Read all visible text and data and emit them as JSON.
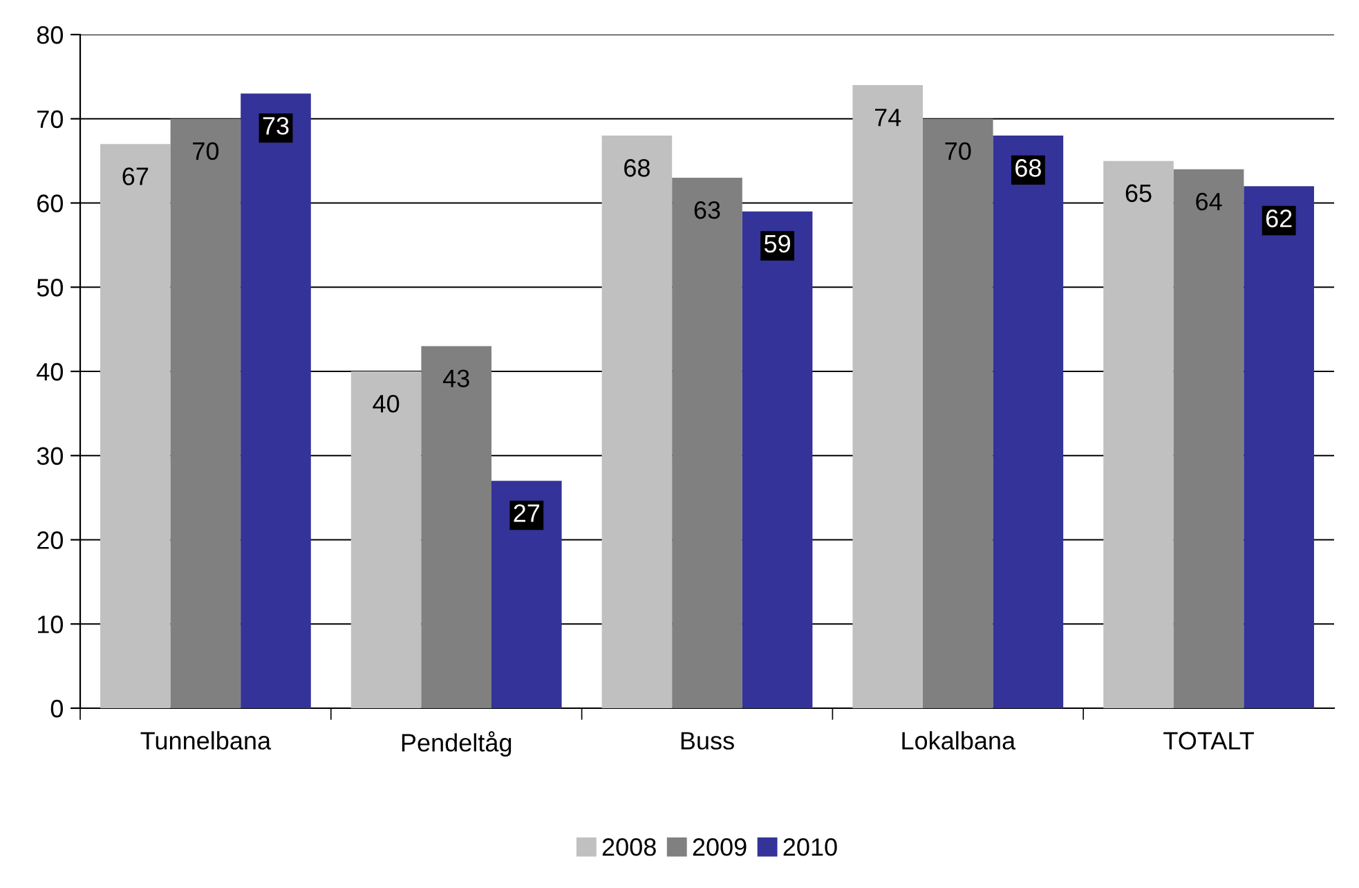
{
  "chart_data": {
    "type": "bar",
    "categories": [
      "Tunnelbana",
      "Pendeltåg",
      "Buss",
      "Lokalbana",
      "TOTALT"
    ],
    "series": [
      {
        "name": "2008",
        "color": "#c0c0c0",
        "values": [
          67,
          40,
          68,
          74,
          65
        ]
      },
      {
        "name": "2009",
        "color": "#808080",
        "values": [
          70,
          43,
          63,
          70,
          64
        ]
      },
      {
        "name": "2010",
        "color": "#333399",
        "values": [
          73,
          27,
          59,
          68,
          62
        ]
      }
    ],
    "ylim": [
      0,
      80
    ],
    "yticks": [
      0,
      10,
      20,
      30,
      40,
      50,
      60,
      70,
      80
    ],
    "grid": "y",
    "legend": "bottom",
    "data_labels": true
  }
}
